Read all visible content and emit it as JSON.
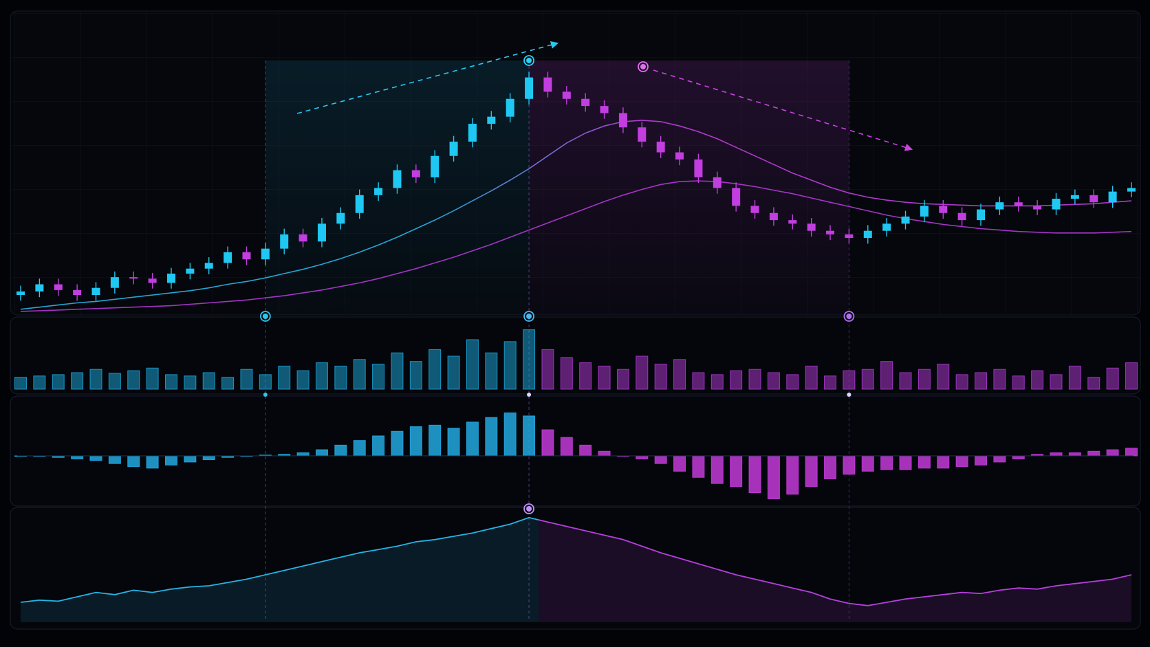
{
  "chart_data": [
    {
      "type": "candlestick",
      "open": [
        25,
        30,
        40,
        32,
        25,
        35,
        50,
        48,
        42,
        55,
        62,
        70,
        85,
        75,
        90,
        110,
        100,
        125,
        140,
        165,
        175,
        200,
        190,
        220,
        240,
        265,
        275,
        300,
        330,
        310,
        300,
        290,
        280,
        260,
        240,
        225,
        215,
        190,
        175,
        150,
        140,
        130,
        125,
        115,
        110,
        105,
        115,
        125,
        135,
        150,
        140,
        130,
        145,
        155,
        150,
        145,
        160,
        165,
        155,
        170
      ],
      "high": [
        38,
        48,
        48,
        40,
        43,
        58,
        58,
        56,
        63,
        70,
        78,
        93,
        93,
        98,
        118,
        118,
        133,
        148,
        173,
        183,
        208,
        208,
        228,
        248,
        273,
        283,
        308,
        338,
        338,
        318,
        308,
        298,
        288,
        268,
        248,
        233,
        223,
        198,
        183,
        158,
        148,
        138,
        133,
        123,
        118,
        123,
        133,
        143,
        158,
        158,
        148,
        153,
        163,
        163,
        158,
        168,
        173,
        173,
        178,
        183
      ],
      "low": [
        17,
        22,
        24,
        17,
        17,
        27,
        40,
        34,
        34,
        47,
        54,
        62,
        67,
        67,
        82,
        92,
        92,
        117,
        132,
        157,
        167,
        182,
        182,
        212,
        232,
        257,
        267,
        292,
        302,
        292,
        282,
        272,
        252,
        232,
        217,
        207,
        182,
        167,
        142,
        132,
        122,
        117,
        107,
        102,
        97,
        97,
        107,
        117,
        127,
        132,
        122,
        122,
        137,
        142,
        137,
        137,
        152,
        147,
        147,
        162
      ],
      "close": [
        30,
        40,
        32,
        25,
        35,
        50,
        48,
        42,
        55,
        62,
        70,
        85,
        75,
        90,
        110,
        100,
        125,
        140,
        165,
        175,
        200,
        190,
        220,
        240,
        265,
        275,
        300,
        330,
        310,
        300,
        290,
        280,
        260,
        240,
        225,
        215,
        190,
        175,
        150,
        140,
        130,
        125,
        115,
        110,
        105,
        115,
        125,
        135,
        150,
        140,
        130,
        145,
        155,
        150,
        145,
        160,
        165,
        155,
        170,
        175
      ],
      "up_color": "#1fc8f2",
      "down_color": "#c23ee0",
      "ylim": [
        0,
        400
      ],
      "series": [
        {
          "color": "#29b6e8",
          "values": [
            5,
            8,
            11,
            14,
            16,
            19,
            22,
            25,
            28,
            31,
            35,
            40,
            44,
            49,
            55,
            61,
            68,
            76,
            85,
            95,
            106,
            118,
            130,
            143,
            157,
            171,
            186,
            202,
            220,
            238,
            252,
            262,
            268,
            270,
            268,
            262,
            254,
            244,
            232,
            220,
            208,
            196,
            186,
            176,
            168,
            162,
            158,
            155,
            153,
            152,
            151,
            150,
            150,
            150,
            150,
            151,
            152,
            153,
            155,
            157
          ]
        },
        {
          "color": "#b43ad8",
          "values": [
            2,
            3,
            4,
            5,
            6,
            7,
            8,
            9,
            10,
            12,
            14,
            16,
            18,
            21,
            24,
            28,
            32,
            37,
            42,
            48,
            55,
            62,
            70,
            78,
            87,
            96,
            106,
            116,
            126,
            136,
            146,
            156,
            165,
            173,
            180,
            184,
            185,
            184,
            181,
            177,
            172,
            167,
            161,
            155,
            149,
            143,
            137,
            132,
            128,
            124,
            121,
            118,
            116,
            114,
            113,
            112,
            112,
            112,
            113,
            114
          ]
        }
      ]
    },
    {
      "type": "bar",
      "colors": [
        "#1a9fd0",
        "#a636c8"
      ],
      "ylim": [
        0,
        100
      ],
      "values": [
        18,
        20,
        22,
        25,
        30,
        24,
        28,
        32,
        22,
        20,
        25,
        18,
        30,
        22,
        35,
        28,
        40,
        35,
        45,
        38,
        55,
        42,
        60,
        50,
        75,
        55,
        72,
        90,
        60,
        48,
        40,
        35,
        30,
        50,
        38,
        45,
        25,
        22,
        28,
        30,
        25,
        22,
        35,
        20,
        28,
        30,
        42,
        25,
        30,
        38,
        22,
        25,
        30,
        20,
        28,
        22,
        35,
        18,
        32,
        40
      ]
    },
    {
      "type": "bar",
      "colors": [
        "#22a8e0",
        "#c33ad8"
      ],
      "ylim": [
        -60,
        60
      ],
      "values": [
        0,
        0,
        -2,
        -4,
        -6,
        -10,
        -14,
        -16,
        -12,
        -8,
        -5,
        -2,
        0,
        1,
        2,
        4,
        8,
        14,
        20,
        26,
        32,
        38,
        40,
        36,
        44,
        50,
        56,
        52,
        34,
        24,
        14,
        6,
        0,
        -4,
        -10,
        -20,
        -28,
        -36,
        -40,
        -48,
        -56,
        -50,
        -40,
        -30,
        -24,
        -20,
        -18,
        -18,
        -16,
        -16,
        -14,
        -12,
        -8,
        -4,
        2,
        4,
        4,
        6,
        8,
        10
      ]
    },
    {
      "type": "line",
      "colors": [
        "#25b4e6",
        "#b83ee0"
      ],
      "ylim": [
        0,
        100
      ],
      "values": [
        15,
        17,
        16,
        20,
        24,
        22,
        26,
        24,
        27,
        29,
        30,
        33,
        36,
        40,
        44,
        48,
        52,
        56,
        60,
        63,
        66,
        70,
        72,
        75,
        78,
        82,
        86,
        92,
        88,
        84,
        80,
        76,
        72,
        66,
        60,
        55,
        50,
        45,
        40,
        36,
        32,
        28,
        24,
        18,
        14,
        12,
        15,
        18,
        20,
        22,
        24,
        23,
        26,
        28,
        27,
        30,
        32,
        34,
        36,
        40
      ]
    }
  ]
}
